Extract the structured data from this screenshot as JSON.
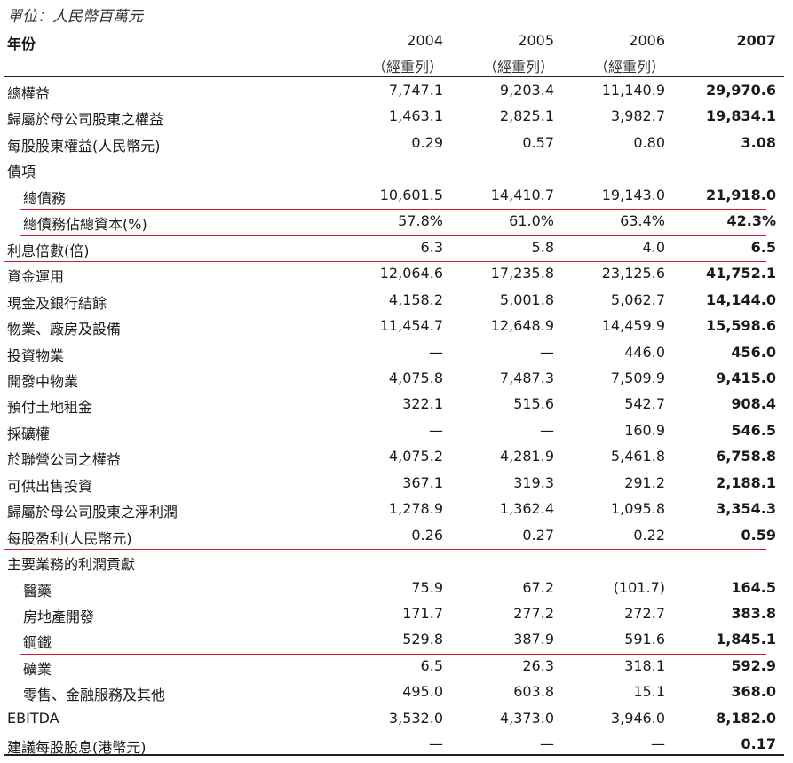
{
  "unit": "單位：人民幣百萬元",
  "header": {
    "label": "年份",
    "years": [
      "2004",
      "2005",
      "2006",
      "2007"
    ],
    "restated": [
      "（經重列）",
      "（經重列）",
      "（經重列）",
      ""
    ]
  },
  "rows": [
    {
      "label": "總權益",
      "values": [
        "7,747.1",
        "9,203.4",
        "11,140.9",
        "29,970.6"
      ]
    },
    {
      "label": "歸屬於母公司股東之權益",
      "values": [
        "1,463.1",
        "2,825.1",
        "3,982.7",
        "19,834.1"
      ]
    },
    {
      "label": "每股股東權益(人民幣元)",
      "values": [
        "0.29",
        "0.57",
        "0.80",
        "3.08"
      ]
    },
    {
      "label": "債項",
      "values": [
        "",
        "",
        "",
        ""
      ]
    },
    {
      "label": "總債務",
      "indent": true,
      "values": [
        "10,601.5",
        "14,410.7",
        "19,143.0",
        "21,918.0"
      ],
      "underline": true
    },
    {
      "label": "總債務佔總資本(%)",
      "indent": true,
      "values": [
        "57.8%",
        "61.0%",
        "63.4%",
        "42.3%"
      ],
      "underline": true
    },
    {
      "label": "利息倍數(倍)",
      "values": [
        "6.3",
        "5.8",
        "4.0",
        "6.5"
      ],
      "underline": true
    },
    {
      "label": "資金運用",
      "values": [
        "12,064.6",
        "17,235.8",
        "23,125.6",
        "41,752.1"
      ]
    },
    {
      "label": "現金及銀行結餘",
      "values": [
        "4,158.2",
        "5,001.8",
        "5,062.7",
        "14,144.0"
      ]
    },
    {
      "label": "物業、廠房及設備",
      "values": [
        "11,454.7",
        "12,648.9",
        "14,459.9",
        "15,598.6"
      ]
    },
    {
      "label": "投資物業",
      "values": [
        "—",
        "—",
        "446.0",
        "456.0"
      ]
    },
    {
      "label": "開發中物業",
      "values": [
        "4,075.8",
        "7,487.3",
        "7,509.9",
        "9,415.0"
      ]
    },
    {
      "label": "預付土地租金",
      "values": [
        "322.1",
        "515.6",
        "542.7",
        "908.4"
      ]
    },
    {
      "label": "採礦權",
      "values": [
        "—",
        "—",
        "160.9",
        "546.5"
      ]
    },
    {
      "label": "於聯營公司之權益",
      "values": [
        "4,075.2",
        "4,281.9",
        "5,461.8",
        "6,758.8"
      ]
    },
    {
      "label": "可供出售投資",
      "values": [
        "367.1",
        "319.3",
        "291.2",
        "2,188.1"
      ]
    },
    {
      "label": "歸屬於母公司股東之淨利潤",
      "values": [
        "1,278.9",
        "1,362.4",
        "1,095.8",
        "3,354.3"
      ]
    },
    {
      "label": "每股盈利(人民幣元)",
      "values": [
        "0.26",
        "0.27",
        "0.22",
        "0.59"
      ],
      "underline": true
    },
    {
      "label": "主要業務的利潤貢獻",
      "values": [
        "",
        "",
        "",
        ""
      ]
    },
    {
      "label": "醫藥",
      "indent": true,
      "values": [
        "75.9",
        "67.2",
        "(101.7)",
        "164.5"
      ]
    },
    {
      "label": "房地產開發",
      "indent": true,
      "values": [
        "171.7",
        "277.2",
        "272.7",
        "383.8"
      ]
    },
    {
      "label": "鋼鐵",
      "indent": true,
      "values": [
        "529.8",
        "387.9",
        "591.6",
        "1,845.1"
      ],
      "underline": true
    },
    {
      "label": "礦業",
      "indent": true,
      "values": [
        "6.5",
        "26.3",
        "318.1",
        "592.9"
      ],
      "underline": true
    },
    {
      "label": "零售、金融服務及其他",
      "indent": true,
      "values": [
        "495.0",
        "603.8",
        "15.1",
        "368.0"
      ]
    },
    {
      "label": "EBITDA",
      "values": [
        "3,532.0",
        "4,373.0",
        "3,946.0",
        "8,182.0"
      ]
    },
    {
      "label": "建議每股股息(港幣元)",
      "values": [
        "—",
        "—",
        "—",
        "0.17"
      ]
    }
  ]
}
